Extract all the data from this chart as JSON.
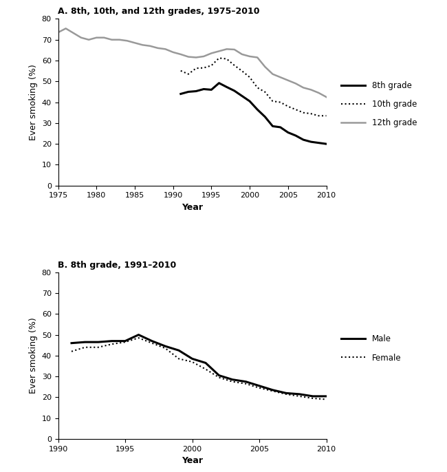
{
  "panel_A_title": "A. 8th, 10th, and 12th grades, 1975–2010",
  "panel_B_title": "B. 8th grade, 1991–2010",
  "ylabel": "Ever smoking (%)",
  "xlabel": "Year",
  "ylim": [
    0,
    80
  ],
  "yticks": [
    0,
    10,
    20,
    30,
    40,
    50,
    60,
    70,
    80
  ],
  "grade12_years": [
    1975,
    1976,
    1977,
    1978,
    1979,
    1980,
    1981,
    1982,
    1983,
    1984,
    1985,
    1986,
    1987,
    1988,
    1989,
    1990,
    1991,
    1992,
    1993,
    1994,
    1995,
    1996,
    1997,
    1998,
    1999,
    2000,
    2001,
    2002,
    2003,
    2004,
    2005,
    2006,
    2007,
    2008,
    2009,
    2010
  ],
  "grade12_vals": [
    73.5,
    75.4,
    73.2,
    71.0,
    70.0,
    71.0,
    71.0,
    70.0,
    70.0,
    69.5,
    68.5,
    67.5,
    67.0,
    66.0,
    65.5,
    64.0,
    63.0,
    61.8,
    61.5,
    62.0,
    63.5,
    64.5,
    65.5,
    65.3,
    63.0,
    62.0,
    61.5,
    57.0,
    53.5,
    52.0,
    50.5,
    49.0,
    47.0,
    46.0,
    44.5,
    42.5
  ],
  "grade10_years": [
    1991,
    1992,
    1993,
    1994,
    1995,
    1996,
    1997,
    1998,
    1999,
    2000,
    2001,
    2002,
    2003,
    2004,
    2005,
    2006,
    2007,
    2008,
    2009,
    2010
  ],
  "grade10_vals": [
    55.1,
    53.5,
    56.3,
    56.5,
    57.6,
    61.2,
    60.8,
    57.7,
    55.0,
    52.0,
    47.0,
    44.9,
    40.5,
    40.0,
    38.0,
    36.5,
    35.0,
    34.5,
    33.5,
    33.5
  ],
  "grade8_years": [
    1991,
    1992,
    1993,
    1994,
    1995,
    1996,
    1997,
    1998,
    1999,
    2000,
    2001,
    2002,
    2003,
    2004,
    2005,
    2006,
    2007,
    2008,
    2009,
    2010
  ],
  "grade8_vals": [
    44.0,
    45.0,
    45.3,
    46.3,
    46.0,
    49.2,
    47.3,
    45.5,
    43.0,
    40.5,
    36.5,
    33.0,
    28.5,
    28.0,
    25.5,
    24.0,
    22.0,
    21.0,
    20.5,
    20.0
  ],
  "b8_male_years": [
    1991,
    1992,
    1993,
    1994,
    1995,
    1996,
    1997,
    1998,
    1999,
    2000,
    2001,
    2002,
    2003,
    2004,
    2005,
    2006,
    2007,
    2008,
    2009,
    2010
  ],
  "b8_male_vals": [
    46.0,
    46.5,
    46.5,
    47.0,
    47.0,
    50.0,
    47.0,
    44.5,
    42.5,
    38.5,
    36.5,
    30.5,
    28.5,
    27.5,
    25.5,
    23.5,
    22.0,
    21.5,
    20.5,
    20.5
  ],
  "b8_female_years": [
    1991,
    1992,
    1993,
    1994,
    1995,
    1996,
    1997,
    1998,
    1999,
    2000,
    2001,
    2002,
    2003,
    2004,
    2005,
    2006,
    2007,
    2008,
    2009,
    2010
  ],
  "b8_female_vals": [
    42.0,
    44.0,
    44.0,
    45.5,
    46.5,
    48.5,
    46.0,
    43.5,
    38.5,
    37.0,
    33.5,
    29.5,
    27.5,
    26.5,
    24.5,
    23.0,
    21.5,
    20.5,
    19.5,
    19.0
  ],
  "color_8th": "#000000",
  "color_10th": "#000000",
  "color_12th": "#999999",
  "color_male": "#000000",
  "color_female": "#000000",
  "xlim_A": [
    1975,
    2010
  ],
  "xlim_B": [
    1990,
    2010
  ],
  "xticks_A": [
    1975,
    1980,
    1985,
    1990,
    1995,
    2000,
    2005,
    2010
  ],
  "xticks_B": [
    1990,
    1995,
    2000,
    2005,
    2010
  ]
}
